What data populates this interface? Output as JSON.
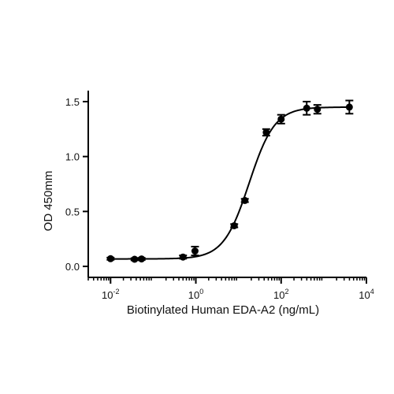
{
  "chart_data": {
    "type": "scatter",
    "xlabel": "Biotinylated Human EDA-A2 (ng/mL)",
    "ylabel": "OD 450mm",
    "x_scale": "log10",
    "xlim": [
      0.003,
      10000
    ],
    "ylim": [
      -0.1,
      1.6
    ],
    "x_major_ticks": [
      {
        "value": 0.01,
        "base": "10",
        "exp": "-2"
      },
      {
        "value": 1,
        "base": "10",
        "exp": "0"
      },
      {
        "value": 100,
        "base": "10",
        "exp": "2"
      },
      {
        "value": 10000,
        "base": "10",
        "exp": "4"
      }
    ],
    "y_ticks": [
      {
        "value": 0.0,
        "label": "0.0"
      },
      {
        "value": 0.5,
        "label": "0.5"
      },
      {
        "value": 1.0,
        "label": "1.0"
      },
      {
        "value": 1.5,
        "label": "1.5"
      }
    ],
    "points": [
      {
        "x": 0.01,
        "y": 0.07,
        "err": 0.01
      },
      {
        "x": 0.0366,
        "y": 0.065,
        "err": 0.01
      },
      {
        "x": 0.0533,
        "y": 0.068,
        "err": 0.01
      },
      {
        "x": 0.5,
        "y": 0.085,
        "err": 0.015
      },
      {
        "x": 0.955,
        "y": 0.14,
        "err": 0.04
      },
      {
        "x": 7.94,
        "y": 0.37,
        "err": 0.015
      },
      {
        "x": 14.1,
        "y": 0.6,
        "err": 0.015
      },
      {
        "x": 44.7,
        "y": 1.22,
        "err": 0.03
      },
      {
        "x": 100,
        "y": 1.34,
        "err": 0.04
      },
      {
        "x": 398,
        "y": 1.44,
        "err": 0.06
      },
      {
        "x": 708,
        "y": 1.43,
        "err": 0.04
      },
      {
        "x": 3981,
        "y": 1.45,
        "err": 0.06
      }
    ],
    "fit_curve": {
      "model": "4PL",
      "bottom": 0.068,
      "top": 1.45,
      "ec50": 17.8,
      "hill": 1.45,
      "x_range": [
        0.01,
        3981
      ]
    },
    "grid": false,
    "legend": "none",
    "color": "#000000"
  }
}
